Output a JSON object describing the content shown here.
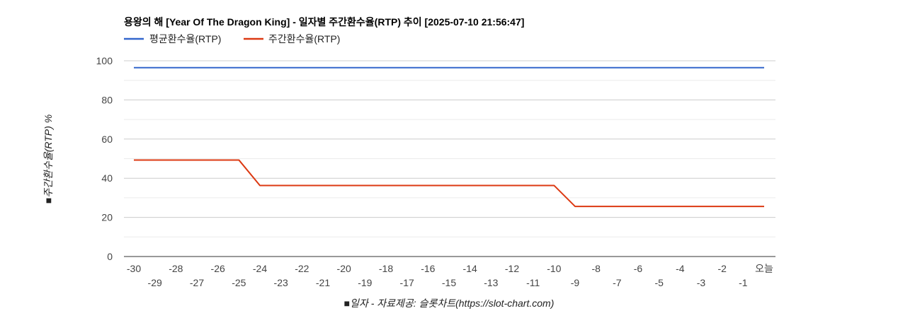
{
  "chart_data": {
    "type": "line",
    "title": "용왕의 해 [Year Of The Dragon King] - 일자별 주간환수율(RTP) 추이 [2025-07-10 21:56:47]",
    "xlabel": "■일자 - 자료제공: 슬롯차트(https://slot-chart.com)",
    "ylabel": "■주간환수율(RTP) %",
    "ylim": [
      0,
      100
    ],
    "yticks": [
      0,
      20,
      40,
      60,
      80,
      100
    ],
    "legend_position": "top-left",
    "grid": true,
    "categories": [
      "-30",
      "-29",
      "-28",
      "-27",
      "-26",
      "-25",
      "-24",
      "-23",
      "-22",
      "-21",
      "-20",
      "-19",
      "-18",
      "-17",
      "-16",
      "-15",
      "-14",
      "-13",
      "-12",
      "-11",
      "-10",
      "-9",
      "-8",
      "-7",
      "-6",
      "-5",
      "-4",
      "-3",
      "-2",
      "-1",
      "오늘"
    ],
    "series": [
      {
        "name": "평균환수율(RTP)",
        "color": "#3366cc",
        "values": [
          96.5,
          96.5,
          96.5,
          96.5,
          96.5,
          96.5,
          96.5,
          96.5,
          96.5,
          96.5,
          96.5,
          96.5,
          96.5,
          96.5,
          96.5,
          96.5,
          96.5,
          96.5,
          96.5,
          96.5,
          96.5,
          96.5,
          96.5,
          96.5,
          96.5,
          96.5,
          96.5,
          96.5,
          96.5,
          96.5,
          96.5
        ]
      },
      {
        "name": "주간환수율(RTP)",
        "color": "#dc3912",
        "values": [
          49.3,
          49.3,
          49.3,
          49.3,
          49.3,
          49.3,
          36.3,
          36.3,
          36.3,
          36.3,
          36.3,
          36.3,
          36.3,
          36.3,
          36.3,
          36.3,
          36.3,
          36.3,
          36.3,
          36.3,
          36.3,
          25.6,
          25.6,
          25.6,
          25.6,
          25.6,
          25.6,
          25.6,
          25.6,
          25.6,
          25.6
        ]
      }
    ]
  }
}
